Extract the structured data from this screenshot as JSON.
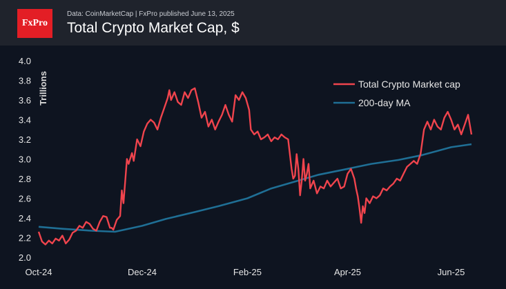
{
  "header": {
    "logo_text": "FxPro",
    "source_text": "Data: CoinMarketCap  |  FxPro published June 13, 2025",
    "title": "Total Crypto Market Cap, $"
  },
  "colors": {
    "background": "#0e1420",
    "header_background": "#1f232c",
    "logo": "#e31e25",
    "market_cap_line": "#f0444d",
    "ma_line": "#1f6f95"
  },
  "chart_data": {
    "type": "line",
    "title": "Total Crypto Market Cap, $",
    "ylabel": "Trillions",
    "xlabel": "",
    "ylim": [
      2.0,
      4.0
    ],
    "xlim": [
      "2024-10-01",
      "2025-06-13"
    ],
    "y_ticks": [
      "2.0",
      "2.2",
      "2.4",
      "2.6",
      "2.8",
      "3.0",
      "3.2",
      "3.4",
      "3.6",
      "3.8",
      "4.0"
    ],
    "x_ticks": [
      {
        "label": "Oct-24",
        "date": "2024-10-01"
      },
      {
        "label": "Dec-24",
        "date": "2024-12-01"
      },
      {
        "label": "Feb-25",
        "date": "2025-02-01"
      },
      {
        "label": "Apr-25",
        "date": "2025-04-01"
      },
      {
        "label": "Jun-25",
        "date": "2025-06-01"
      }
    ],
    "grid": false,
    "legend_position": "top-right",
    "series": [
      {
        "name": "Total Crypto Market cap",
        "color": "#f0444d",
        "points": [
          [
            "2024-10-01",
            2.26
          ],
          [
            "2024-10-03",
            2.16
          ],
          [
            "2024-10-05",
            2.13
          ],
          [
            "2024-10-07",
            2.17
          ],
          [
            "2024-10-09",
            2.14
          ],
          [
            "2024-10-11",
            2.19
          ],
          [
            "2024-10-13",
            2.17
          ],
          [
            "2024-10-15",
            2.22
          ],
          [
            "2024-10-17",
            2.14
          ],
          [
            "2024-10-19",
            2.18
          ],
          [
            "2024-10-21",
            2.25
          ],
          [
            "2024-10-23",
            2.27
          ],
          [
            "2024-10-25",
            2.32
          ],
          [
            "2024-10-27",
            2.3
          ],
          [
            "2024-10-29",
            2.36
          ],
          [
            "2024-10-31",
            2.34
          ],
          [
            "2024-11-02",
            2.29
          ],
          [
            "2024-11-04",
            2.27
          ],
          [
            "2024-11-06",
            2.36
          ],
          [
            "2024-11-08",
            2.42
          ],
          [
            "2024-11-10",
            2.41
          ],
          [
            "2024-11-12",
            2.3
          ],
          [
            "2024-11-13",
            2.3
          ],
          [
            "2024-11-14",
            2.28
          ],
          [
            "2024-11-16",
            2.38
          ],
          [
            "2024-11-18",
            2.42
          ],
          [
            "2024-11-19",
            2.68
          ],
          [
            "2024-11-20",
            2.55
          ],
          [
            "2024-11-22",
            3.0
          ],
          [
            "2024-11-23",
            2.95
          ],
          [
            "2024-11-25",
            3.06
          ],
          [
            "2024-11-26",
            2.98
          ],
          [
            "2024-11-28",
            3.2
          ],
          [
            "2024-11-30",
            3.13
          ],
          [
            "2024-12-02",
            3.28
          ],
          [
            "2024-12-04",
            3.36
          ],
          [
            "2024-12-06",
            3.4
          ],
          [
            "2024-12-08",
            3.37
          ],
          [
            "2024-12-10",
            3.3
          ],
          [
            "2024-12-12",
            3.42
          ],
          [
            "2024-12-14",
            3.52
          ],
          [
            "2024-12-16",
            3.62
          ],
          [
            "2024-12-17",
            3.7
          ],
          [
            "2024-12-18",
            3.6
          ],
          [
            "2024-12-20",
            3.68
          ],
          [
            "2024-12-22",
            3.58
          ],
          [
            "2024-12-24",
            3.55
          ],
          [
            "2024-12-26",
            3.68
          ],
          [
            "2024-12-28",
            3.62
          ],
          [
            "2024-12-30",
            3.7
          ],
          [
            "2025-01-01",
            3.72
          ],
          [
            "2025-01-03",
            3.58
          ],
          [
            "2025-01-05",
            3.42
          ],
          [
            "2025-01-07",
            3.48
          ],
          [
            "2025-01-09",
            3.33
          ],
          [
            "2025-01-11",
            3.4
          ],
          [
            "2025-01-13",
            3.3
          ],
          [
            "2025-01-15",
            3.38
          ],
          [
            "2025-01-17",
            3.45
          ],
          [
            "2025-01-19",
            3.55
          ],
          [
            "2025-01-21",
            3.45
          ],
          [
            "2025-01-23",
            3.38
          ],
          [
            "2025-01-25",
            3.65
          ],
          [
            "2025-01-27",
            3.6
          ],
          [
            "2025-01-29",
            3.68
          ],
          [
            "2025-01-31",
            3.62
          ],
          [
            "2025-02-02",
            3.5
          ],
          [
            "2025-02-03",
            3.3
          ],
          [
            "2025-02-05",
            3.25
          ],
          [
            "2025-02-07",
            3.28
          ],
          [
            "2025-02-09",
            3.2
          ],
          [
            "2025-02-11",
            3.22
          ],
          [
            "2025-02-13",
            3.25
          ],
          [
            "2025-02-15",
            3.18
          ],
          [
            "2025-02-17",
            3.22
          ],
          [
            "2025-02-19",
            3.2
          ],
          [
            "2025-02-21",
            3.25
          ],
          [
            "2025-02-23",
            3.22
          ],
          [
            "2025-02-25",
            3.2
          ],
          [
            "2025-02-26",
            3.05
          ],
          [
            "2025-02-27",
            2.9
          ],
          [
            "2025-02-28",
            2.8
          ],
          [
            "2025-03-01",
            2.83
          ],
          [
            "2025-03-02",
            3.05
          ],
          [
            "2025-03-03",
            2.9
          ],
          [
            "2025-03-04",
            2.63
          ],
          [
            "2025-03-05",
            2.78
          ],
          [
            "2025-03-06",
            3.0
          ],
          [
            "2025-03-07",
            2.78
          ],
          [
            "2025-03-08",
            2.85
          ],
          [
            "2025-03-09",
            2.95
          ],
          [
            "2025-03-10",
            2.7
          ],
          [
            "2025-03-12",
            2.78
          ],
          [
            "2025-03-14",
            2.65
          ],
          [
            "2025-03-16",
            2.72
          ],
          [
            "2025-03-18",
            2.7
          ],
          [
            "2025-03-20",
            2.78
          ],
          [
            "2025-03-22",
            2.72
          ],
          [
            "2025-03-24",
            2.76
          ],
          [
            "2025-03-26",
            2.8
          ],
          [
            "2025-03-28",
            2.7
          ],
          [
            "2025-03-30",
            2.72
          ],
          [
            "2025-04-01",
            2.85
          ],
          [
            "2025-04-03",
            2.9
          ],
          [
            "2025-04-05",
            2.8
          ],
          [
            "2025-04-06",
            2.7
          ],
          [
            "2025-04-07",
            2.62
          ],
          [
            "2025-04-08",
            2.5
          ],
          [
            "2025-04-09",
            2.35
          ],
          [
            "2025-04-10",
            2.52
          ],
          [
            "2025-04-11",
            2.45
          ],
          [
            "2025-04-12",
            2.6
          ],
          [
            "2025-04-14",
            2.55
          ],
          [
            "2025-04-16",
            2.62
          ],
          [
            "2025-04-18",
            2.6
          ],
          [
            "2025-04-20",
            2.63
          ],
          [
            "2025-04-22",
            2.7
          ],
          [
            "2025-04-24",
            2.68
          ],
          [
            "2025-04-26",
            2.72
          ],
          [
            "2025-04-28",
            2.75
          ],
          [
            "2025-04-30",
            2.8
          ],
          [
            "2025-05-02",
            2.78
          ],
          [
            "2025-05-04",
            2.85
          ],
          [
            "2025-05-06",
            2.92
          ],
          [
            "2025-05-08",
            2.95
          ],
          [
            "2025-05-10",
            2.98
          ],
          [
            "2025-05-12",
            2.95
          ],
          [
            "2025-05-14",
            3.05
          ],
          [
            "2025-05-16",
            3.3
          ],
          [
            "2025-05-18",
            3.38
          ],
          [
            "2025-05-20",
            3.3
          ],
          [
            "2025-05-22",
            3.4
          ],
          [
            "2025-05-24",
            3.33
          ],
          [
            "2025-05-26",
            3.3
          ],
          [
            "2025-05-28",
            3.42
          ],
          [
            "2025-05-30",
            3.48
          ],
          [
            "2025-06-01",
            3.4
          ],
          [
            "2025-06-03",
            3.3
          ],
          [
            "2025-06-05",
            3.35
          ],
          [
            "2025-06-07",
            3.25
          ],
          [
            "2025-06-09",
            3.35
          ],
          [
            "2025-06-11",
            3.45
          ],
          [
            "2025-06-13",
            3.25
          ]
        ]
      },
      {
        "name": "200-day MA",
        "color": "#1f6f95",
        "points": [
          [
            "2024-10-01",
            2.31
          ],
          [
            "2024-10-15",
            2.29
          ],
          [
            "2024-11-01",
            2.27
          ],
          [
            "2024-11-15",
            2.26
          ],
          [
            "2024-12-01",
            2.32
          ],
          [
            "2024-12-15",
            2.39
          ],
          [
            "2025-01-01",
            2.46
          ],
          [
            "2025-01-15",
            2.52
          ],
          [
            "2025-02-01",
            2.6
          ],
          [
            "2025-02-15",
            2.7
          ],
          [
            "2025-03-01",
            2.77
          ],
          [
            "2025-03-15",
            2.84
          ],
          [
            "2025-04-01",
            2.9
          ],
          [
            "2025-04-15",
            2.95
          ],
          [
            "2025-05-01",
            2.99
          ],
          [
            "2025-05-15",
            3.04
          ],
          [
            "2025-06-01",
            3.12
          ],
          [
            "2025-06-13",
            3.15
          ]
        ]
      }
    ]
  }
}
